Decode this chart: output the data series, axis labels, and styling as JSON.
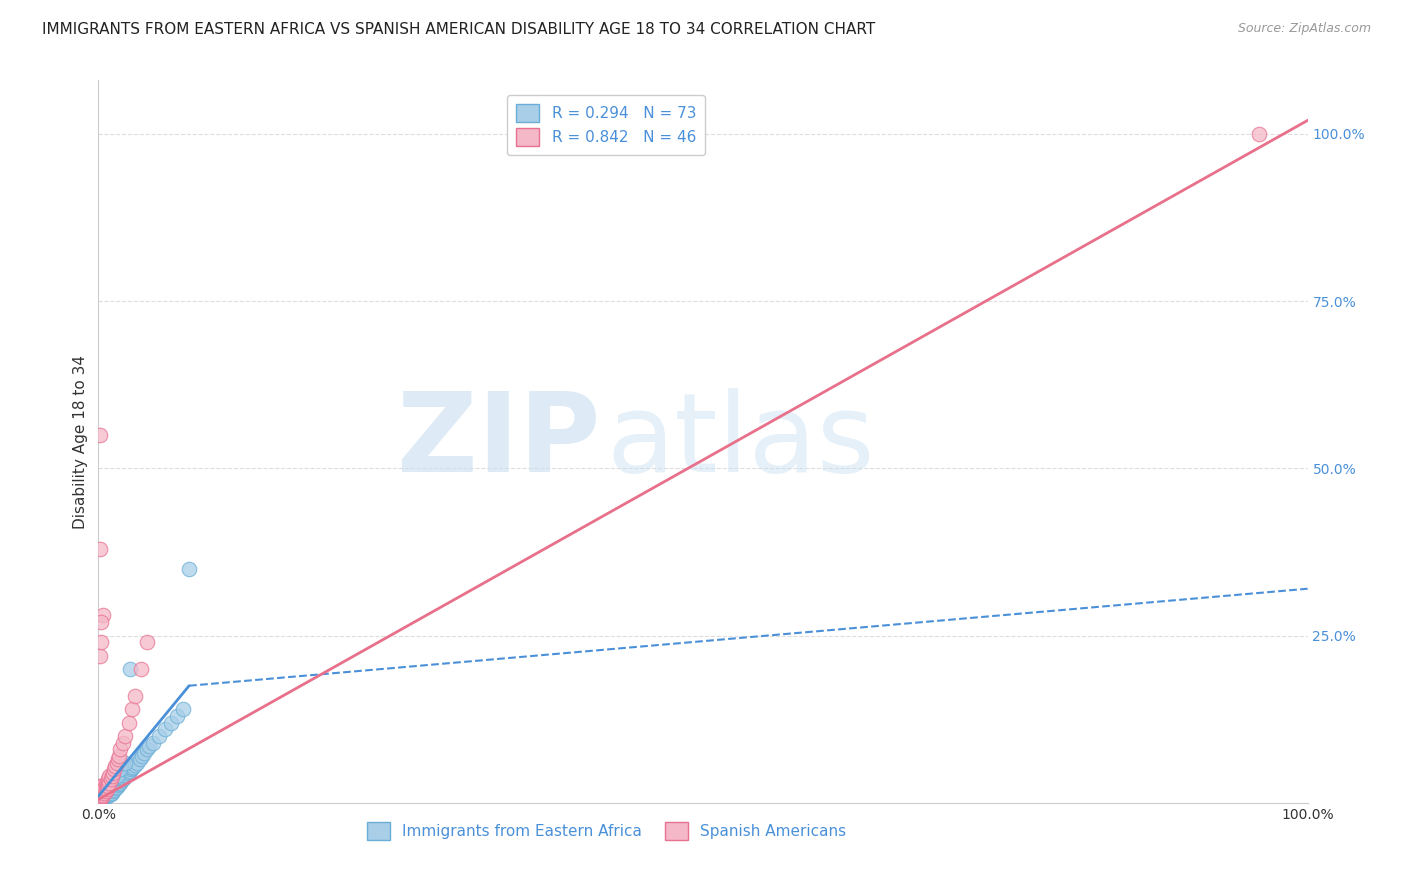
{
  "title": "IMMIGRANTS FROM EASTERN AFRICA VS SPANISH AMERICAN DISABILITY AGE 18 TO 34 CORRELATION CHART",
  "source": "Source: ZipAtlas.com",
  "ylabel": "Disability Age 18 to 34",
  "xlabel": "",
  "xlim": [
    0,
    1.0
  ],
  "ylim": [
    0,
    1.08
  ],
  "xticks": [
    0.0,
    0.25,
    0.5,
    0.75,
    1.0
  ],
  "xticklabels": [
    "0.0%",
    "",
    "",
    "",
    "100.0%"
  ],
  "yticks_right": [
    0.0,
    0.25,
    0.5,
    0.75,
    1.0
  ],
  "yticklabels_right": [
    "",
    "25.0%",
    "50.0%",
    "75.0%",
    "100.0%"
  ],
  "blue_color": "#A8CEE8",
  "blue_edge": "#6AAED6",
  "pink_color": "#F4B8C8",
  "pink_edge": "#E87090",
  "blue_line_color": "#4A90D9",
  "pink_line_color": "#E8708A",
  "legend_R_blue": "R = 0.294",
  "legend_N_blue": "N = 73",
  "legend_R_pink": "R = 0.842",
  "legend_N_pink": "N = 46",
  "label_blue": "Immigrants from Eastern Africa",
  "label_pink": "Spanish Americans",
  "watermark_zip": "ZIP",
  "watermark_atlas": "atlas",
  "grid_color": "#DDDDDD",
  "background_color": "#FFFFFF",
  "title_fontsize": 11,
  "axis_label_fontsize": 11,
  "tick_fontsize": 10,
  "legend_fontsize": 11,
  "blue_x": [
    0.001,
    0.001,
    0.001,
    0.002,
    0.002,
    0.002,
    0.002,
    0.003,
    0.003,
    0.003,
    0.004,
    0.004,
    0.004,
    0.005,
    0.005,
    0.005,
    0.006,
    0.006,
    0.007,
    0.007,
    0.008,
    0.008,
    0.009,
    0.009,
    0.01,
    0.01,
    0.011,
    0.012,
    0.013,
    0.014,
    0.015,
    0.016,
    0.017,
    0.018,
    0.019,
    0.02,
    0.021,
    0.022,
    0.023,
    0.024,
    0.025,
    0.026,
    0.027,
    0.028,
    0.029,
    0.03,
    0.032,
    0.034,
    0.036,
    0.038,
    0.04,
    0.042,
    0.045,
    0.05,
    0.055,
    0.06,
    0.065,
    0.07,
    0.001,
    0.001,
    0.002,
    0.003,
    0.004,
    0.005,
    0.006,
    0.008,
    0.01,
    0.012,
    0.015,
    0.018,
    0.022,
    0.026,
    0.075
  ],
  "blue_y": [
    0.005,
    0.008,
    0.012,
    0.005,
    0.008,
    0.01,
    0.015,
    0.006,
    0.009,
    0.013,
    0.007,
    0.011,
    0.015,
    0.008,
    0.012,
    0.016,
    0.009,
    0.014,
    0.01,
    0.016,
    0.011,
    0.018,
    0.012,
    0.02,
    0.013,
    0.022,
    0.015,
    0.017,
    0.019,
    0.022,
    0.024,
    0.026,
    0.028,
    0.03,
    0.032,
    0.035,
    0.037,
    0.04,
    0.042,
    0.044,
    0.046,
    0.048,
    0.05,
    0.052,
    0.054,
    0.056,
    0.06,
    0.065,
    0.07,
    0.075,
    0.08,
    0.085,
    0.09,
    0.1,
    0.11,
    0.12,
    0.13,
    0.14,
    0.003,
    0.006,
    0.009,
    0.012,
    0.014,
    0.017,
    0.02,
    0.025,
    0.03,
    0.035,
    0.04,
    0.05,
    0.06,
    0.2,
    0.35
  ],
  "pink_x": [
    0.001,
    0.001,
    0.001,
    0.001,
    0.001,
    0.002,
    0.002,
    0.002,
    0.002,
    0.003,
    0.003,
    0.003,
    0.004,
    0.004,
    0.004,
    0.005,
    0.005,
    0.006,
    0.006,
    0.007,
    0.007,
    0.008,
    0.008,
    0.009,
    0.009,
    0.01,
    0.011,
    0.012,
    0.013,
    0.014,
    0.015,
    0.016,
    0.017,
    0.018,
    0.02,
    0.022,
    0.025,
    0.028,
    0.03,
    0.035,
    0.04,
    0.001,
    0.001,
    0.002,
    0.002,
    0.96
  ],
  "pink_y": [
    0.005,
    0.008,
    0.02,
    0.025,
    0.55,
    0.007,
    0.01,
    0.015,
    0.02,
    0.01,
    0.015,
    0.025,
    0.012,
    0.018,
    0.28,
    0.015,
    0.022,
    0.018,
    0.025,
    0.02,
    0.03,
    0.025,
    0.035,
    0.03,
    0.04,
    0.035,
    0.04,
    0.045,
    0.05,
    0.055,
    0.06,
    0.065,
    0.07,
    0.08,
    0.09,
    0.1,
    0.12,
    0.14,
    0.16,
    0.2,
    0.24,
    0.38,
    0.22,
    0.24,
    0.27,
    1.0
  ],
  "blue_line_x0": 0.0,
  "blue_line_x_solid_end": 0.075,
  "blue_line_x1": 1.0,
  "blue_line_y0": 0.01,
  "blue_line_y_solid_end": 0.175,
  "blue_line_y1": 0.32,
  "pink_line_x0": 0.0,
  "pink_line_x1": 1.0,
  "pink_line_y0": 0.005,
  "pink_line_y1": 1.02
}
